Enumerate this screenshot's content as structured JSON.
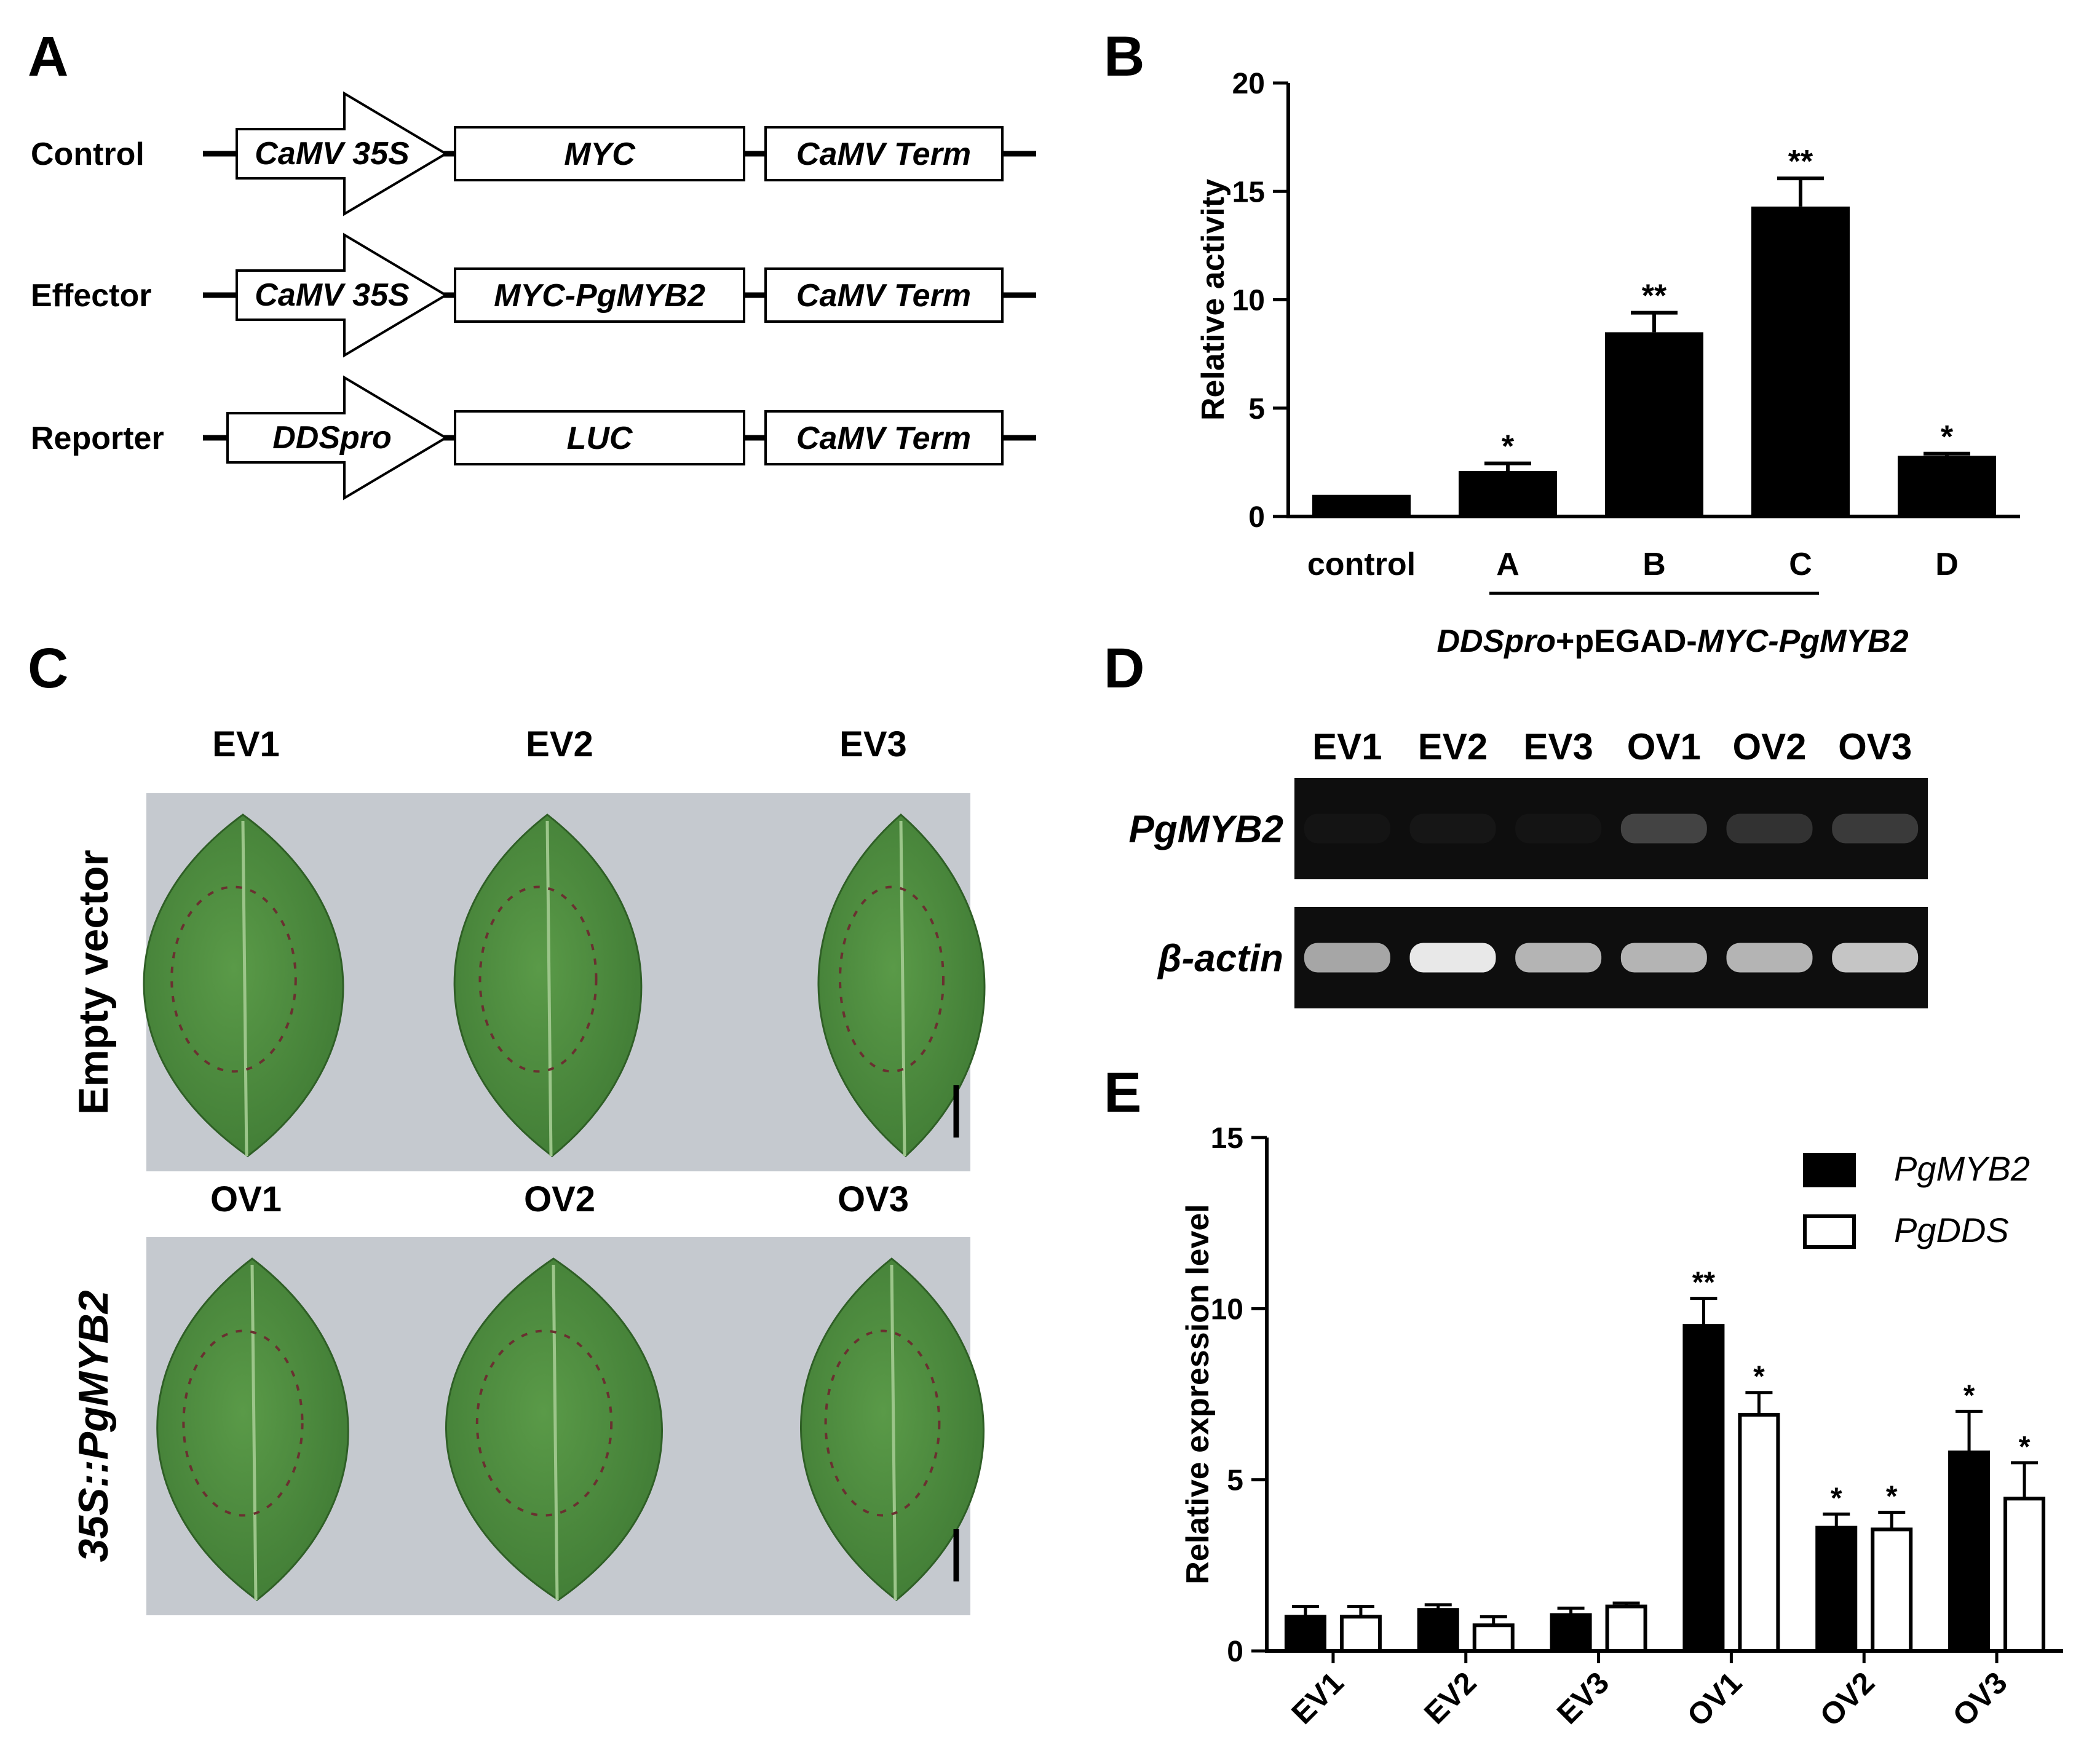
{
  "panels": {
    "a": {
      "letter": "A",
      "rows": [
        {
          "label": "Control",
          "promoter": "CaMV 35S",
          "gene": "MYC",
          "terminator": "CaMV Term"
        },
        {
          "label": "Effector",
          "promoter": "CaMV 35S",
          "gene": "MYC-PgMYB2",
          "terminator": "CaMV Term"
        },
        {
          "label": "Reporter",
          "promoter": "DDSpro",
          "gene": "LUC",
          "terminator": "CaMV Term"
        }
      ]
    },
    "b": {
      "letter": "B"
    },
    "c": {
      "letter": "C",
      "top_row_label": "Empty vector",
      "bottom_row_label": "35S::PgMYB2",
      "top_samples": [
        "EV1",
        "EV2",
        "EV3"
      ],
      "bottom_samples": [
        "OV1",
        "OV2",
        "OV3"
      ],
      "leaf_color": "#3f7a34",
      "background_color": "#c5c9cf"
    },
    "d": {
      "letter": "D",
      "lanes": [
        "EV1",
        "EV2",
        "EV3",
        "OV1",
        "OV2",
        "OV3"
      ],
      "gel_rows": [
        {
          "label": "PgMYB2",
          "intensity": [
            0.02,
            0.03,
            0.02,
            0.35,
            0.25,
            0.3
          ]
        },
        {
          "label": "β-actin",
          "intensity": [
            0.75,
            0.95,
            0.8,
            0.8,
            0.8,
            0.85
          ]
        }
      ]
    },
    "e": {
      "letter": "E"
    }
  },
  "chart_data": [
    {
      "type": "bar",
      "panel": "B",
      "categories": [
        "control",
        "A",
        "B",
        "C",
        "D"
      ],
      "values": [
        1.0,
        2.1,
        8.5,
        14.3,
        2.8
      ],
      "errors": [
        0.05,
        0.35,
        0.9,
        1.3,
        0.1
      ],
      "significance": [
        "",
        "*",
        "**",
        "**",
        "*"
      ],
      "ylabel": "Relative activity",
      "ylim": [
        0,
        20
      ],
      "yticks": [
        0,
        5,
        10,
        15,
        20
      ],
      "group_label": {
        "prefix_italic": "DDSpro",
        "middle": "+pEGAD-",
        "suffix_italic": "MYC-PgMYB2"
      },
      "bar_color": "#000000"
    },
    {
      "type": "bar",
      "panel": "E",
      "categories": [
        "EV1",
        "EV2",
        "EV3",
        "OV1",
        "OV2",
        "OV3"
      ],
      "series": [
        {
          "name": "PgMYB2",
          "values": [
            1.0,
            1.2,
            1.05,
            9.5,
            3.6,
            5.8
          ],
          "errors": [
            0.3,
            0.15,
            0.2,
            0.8,
            0.4,
            1.2
          ],
          "significance": [
            "",
            "",
            "",
            "**",
            "*",
            "*"
          ],
          "fill": "#000000"
        },
        {
          "name": "PgDDS",
          "values": [
            1.0,
            0.75,
            1.3,
            6.9,
            3.55,
            4.45
          ],
          "errors": [
            0.3,
            0.25,
            0.1,
            0.65,
            0.5,
            1.05
          ],
          "significance": [
            "",
            "",
            "",
            "*",
            "*",
            "*"
          ],
          "fill": "#ffffff"
        }
      ],
      "ylabel": "Relative expression level",
      "ylim": [
        0,
        15
      ],
      "yticks": [
        0,
        5,
        10,
        15
      ],
      "legend": "top-right"
    }
  ]
}
